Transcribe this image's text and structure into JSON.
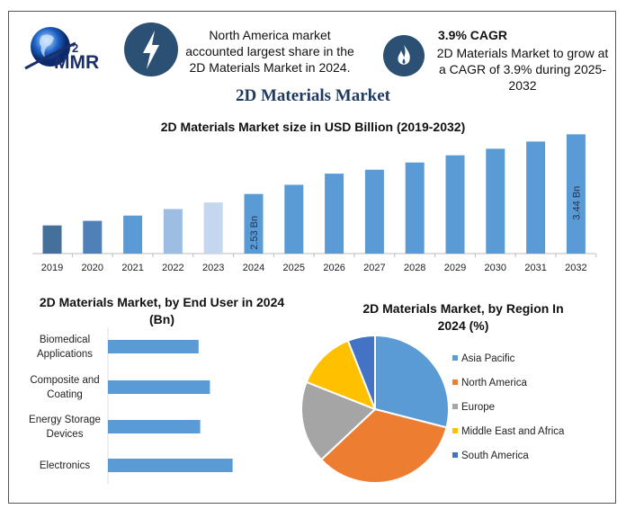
{
  "header": {
    "logo_text": "MMR",
    "info1": [
      "North America market",
      "accounted largest share in the",
      "2D Materials Market in 2024."
    ],
    "info2_title": "3.9% CAGR",
    "info2": [
      "2D Materials Market to grow at",
      "a CAGR of 3.9% during 2025-",
      "2032"
    ],
    "icon1": "lightning-icon",
    "icon2": "flame-icon",
    "icon_color": "#2c4f74"
  },
  "main_title": "2D Materials Market",
  "chart_data": [
    {
      "type": "bar",
      "title": "2D Materials Market size in USD Billion (2019-2032)",
      "categories": [
        "2019",
        "2020",
        "2021",
        "2022",
        "2023",
        "2024",
        "2025",
        "2026",
        "2027",
        "2028",
        "2029",
        "2030",
        "2031",
        "2032"
      ],
      "values": [
        2.05,
        2.12,
        2.2,
        2.3,
        2.4,
        2.53,
        2.67,
        2.84,
        2.9,
        3.01,
        3.12,
        3.22,
        3.33,
        3.44
      ],
      "colors": [
        "#44709b",
        "#4f81b8",
        "#5b9bd5",
        "#9dbde2",
        "#c5d7ee",
        "#5b9bd5",
        "#5b9bd5",
        "#5b9bd5",
        "#5b9bd5",
        "#5b9bd5",
        "#5b9bd5",
        "#5b9bd5",
        "#5b9bd5",
        "#5b9bd5"
      ],
      "data_labels": {
        "2024": "2.53 Bn",
        "2032": "3.44 Bn"
      },
      "ylim": [
        1.62,
        3.5
      ],
      "grid": false
    },
    {
      "type": "bar",
      "orientation": "horizontal",
      "title": "2D Materials Market, by End User in 2024 (Bn)",
      "categories": [
        [
          "Biomedical",
          "Applications"
        ],
        [
          "Composite and",
          "Coating"
        ],
        [
          "Energy Storage",
          "Devices"
        ],
        [
          "Electronics"
        ]
      ],
      "values": [
        0.56,
        0.63,
        0.57,
        0.77
      ],
      "color": "#5b9bd5",
      "xlim": [
        0,
        1.0
      ],
      "grid": false
    },
    {
      "type": "pie",
      "title": "2D Materials Market, by Region In 2024 (%)",
      "labels": [
        "Asia Pacific",
        "North America",
        "Europe",
        "Middle East and Africa",
        "South America"
      ],
      "values": [
        29,
        34,
        18,
        13,
        6
      ],
      "colors": [
        "#5b9bd5",
        "#ed7d31",
        "#a5a5a5",
        "#ffc000",
        "#4472c4"
      ],
      "legend": "right"
    }
  ]
}
